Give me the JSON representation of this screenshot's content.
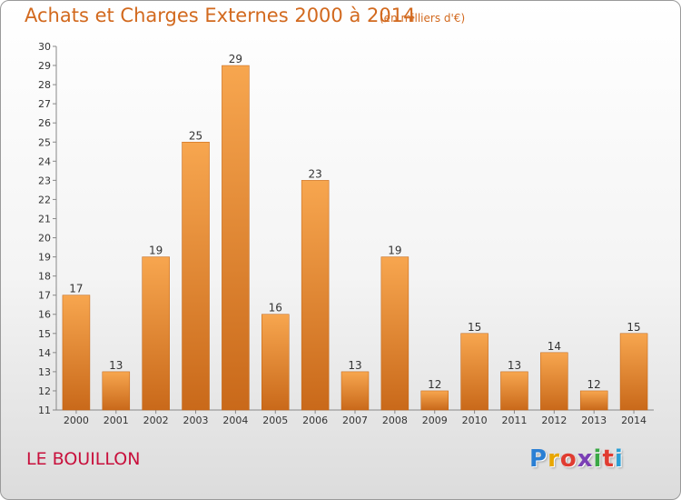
{
  "header": {
    "title": "Achats et Charges Externes 2000 à 2014",
    "unit": "(en milliers d'€)"
  },
  "footer": {
    "commune": "LE BOUILLON",
    "logo_letters": [
      "P",
      "r",
      "o",
      "x",
      "i",
      "t",
      "i"
    ],
    "logo_colors": [
      "#2a7fd4",
      "#e8a600",
      "#e03c31",
      "#7a3fb5",
      "#3aa845",
      "#e03c31",
      "#2a9fd6"
    ]
  },
  "colors": {
    "bar_light": "#f7a64f",
    "bar_dark": "#c9691a",
    "title": "#d2691e",
    "commune": "#c8103c"
  },
  "chart_data": {
    "type": "bar",
    "title": "Achats et Charges Externes 2000 à 2014",
    "subtitle": "(en milliers d'€)",
    "xlabel": "",
    "ylabel": "",
    "ylim": [
      11,
      30
    ],
    "yticks": [
      11,
      12,
      13,
      14,
      15,
      16,
      17,
      18,
      19,
      20,
      21,
      22,
      23,
      24,
      25,
      26,
      27,
      28,
      29,
      30
    ],
    "categories": [
      "2000",
      "2001",
      "2002",
      "2003",
      "2004",
      "2005",
      "2006",
      "2007",
      "2008",
      "2009",
      "2010",
      "2011",
      "2012",
      "2013",
      "2014"
    ],
    "values": [
      17,
      13,
      19,
      25,
      29,
      16,
      23,
      13,
      19,
      12,
      15,
      13,
      14,
      12,
      15
    ],
    "grid": false,
    "legend": "none"
  }
}
